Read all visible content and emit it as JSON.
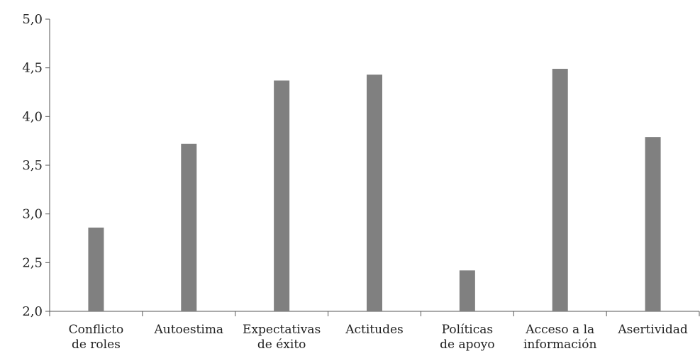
{
  "chart_data": {
    "type": "bar",
    "categories": [
      [
        "Conflicto",
        "de roles"
      ],
      [
        "Autoestima"
      ],
      [
        "Expectativas",
        "de éxito"
      ],
      [
        "Actitudes"
      ],
      [
        "Políticas",
        "de apoyo"
      ],
      [
        "Acceso a la",
        "información"
      ],
      [
        "Asertividad"
      ]
    ],
    "values": [
      2.86,
      3.72,
      4.37,
      4.43,
      2.42,
      4.49,
      3.79
    ],
    "ylim": [
      2.0,
      5.0
    ],
    "yticks": [
      "2,0",
      "2,5",
      "3,0",
      "3,5",
      "4,0",
      "4,5",
      "5,0"
    ],
    "title": "",
    "xlabel": "",
    "ylabel": "",
    "bar_color": "#808080",
    "grid": false
  }
}
